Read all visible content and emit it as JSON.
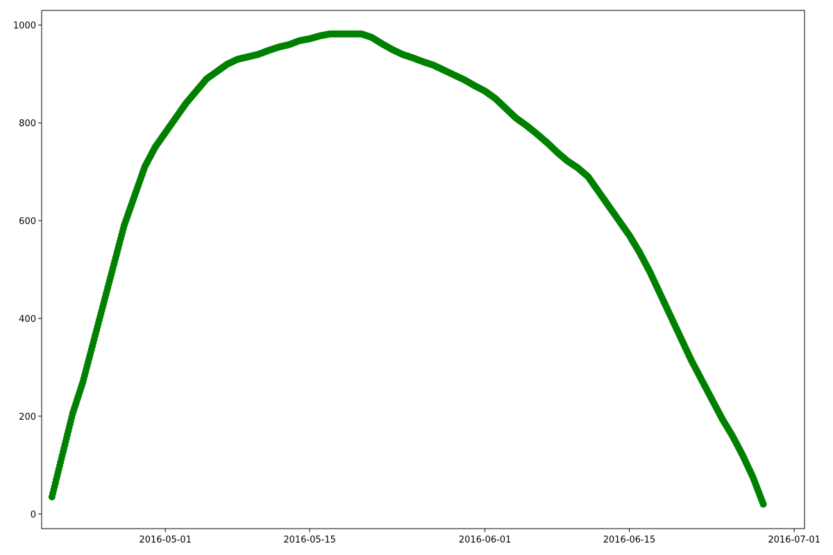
{
  "chart_data": {
    "type": "scatter",
    "title": "",
    "xlabel": "",
    "ylabel": "",
    "x_type": "date",
    "xlim": [
      "2016-04-19",
      "2016-07-02"
    ],
    "ylim": [
      -30,
      1030
    ],
    "xticks": [
      "2016-05-01",
      "2016-05-15",
      "2016-06-01",
      "2016-06-15",
      "2016-07-01"
    ],
    "xtick_labels": [
      "2016-05-01",
      "2016-05-15",
      "2016-06-01",
      "2016-06-15",
      "2016-07-01"
    ],
    "yticks": [
      0,
      200,
      400,
      600,
      800,
      1000
    ],
    "ytick_labels": [
      "0",
      "200",
      "400",
      "600",
      "800",
      "1000"
    ],
    "grid": false,
    "marker_color": "#008000",
    "series": [
      {
        "x": [
          "2016-04-20",
          "2016-04-21",
          "2016-04-22",
          "2016-04-23",
          "2016-04-24",
          "2016-04-25",
          "2016-04-26",
          "2016-04-27",
          "2016-04-28",
          "2016-04-29",
          "2016-04-30",
          "2016-05-01",
          "2016-05-02",
          "2016-05-03",
          "2016-05-04",
          "2016-05-05",
          "2016-05-06",
          "2016-05-07",
          "2016-05-08",
          "2016-05-09",
          "2016-05-10",
          "2016-05-11",
          "2016-05-12",
          "2016-05-13",
          "2016-05-14",
          "2016-05-15",
          "2016-05-16",
          "2016-05-17",
          "2016-05-18",
          "2016-05-19",
          "2016-05-20",
          "2016-05-21",
          "2016-05-22",
          "2016-05-23",
          "2016-05-24",
          "2016-05-25",
          "2016-05-26",
          "2016-05-27",
          "2016-05-28",
          "2016-05-29",
          "2016-05-30",
          "2016-05-31",
          "2016-06-01",
          "2016-06-02",
          "2016-06-03",
          "2016-06-04",
          "2016-06-05",
          "2016-06-06",
          "2016-06-07",
          "2016-06-08",
          "2016-06-09",
          "2016-06-10",
          "2016-06-11",
          "2016-06-12",
          "2016-06-13",
          "2016-06-14",
          "2016-06-15",
          "2016-06-16",
          "2016-06-17",
          "2016-06-18",
          "2016-06-19",
          "2016-06-20",
          "2016-06-21",
          "2016-06-22",
          "2016-06-23",
          "2016-06-24",
          "2016-06-25",
          "2016-06-26",
          "2016-06-27",
          "2016-06-28"
        ],
        "y": [
          35,
          120,
          205,
          270,
          350,
          430,
          510,
          590,
          650,
          710,
          750,
          780,
          810,
          840,
          865,
          890,
          905,
          920,
          930,
          935,
          940,
          948,
          955,
          960,
          968,
          972,
          978,
          982,
          982,
          982,
          982,
          975,
          962,
          950,
          940,
          933,
          925,
          918,
          908,
          898,
          888,
          876,
          865,
          850,
          830,
          810,
          795,
          778,
          760,
          740,
          722,
          708,
          690,
          660,
          630,
          600,
          570,
          535,
          495,
          450,
          405,
          360,
          315,
          275,
          235,
          195,
          160,
          120,
          75,
          20
        ]
      }
    ]
  }
}
